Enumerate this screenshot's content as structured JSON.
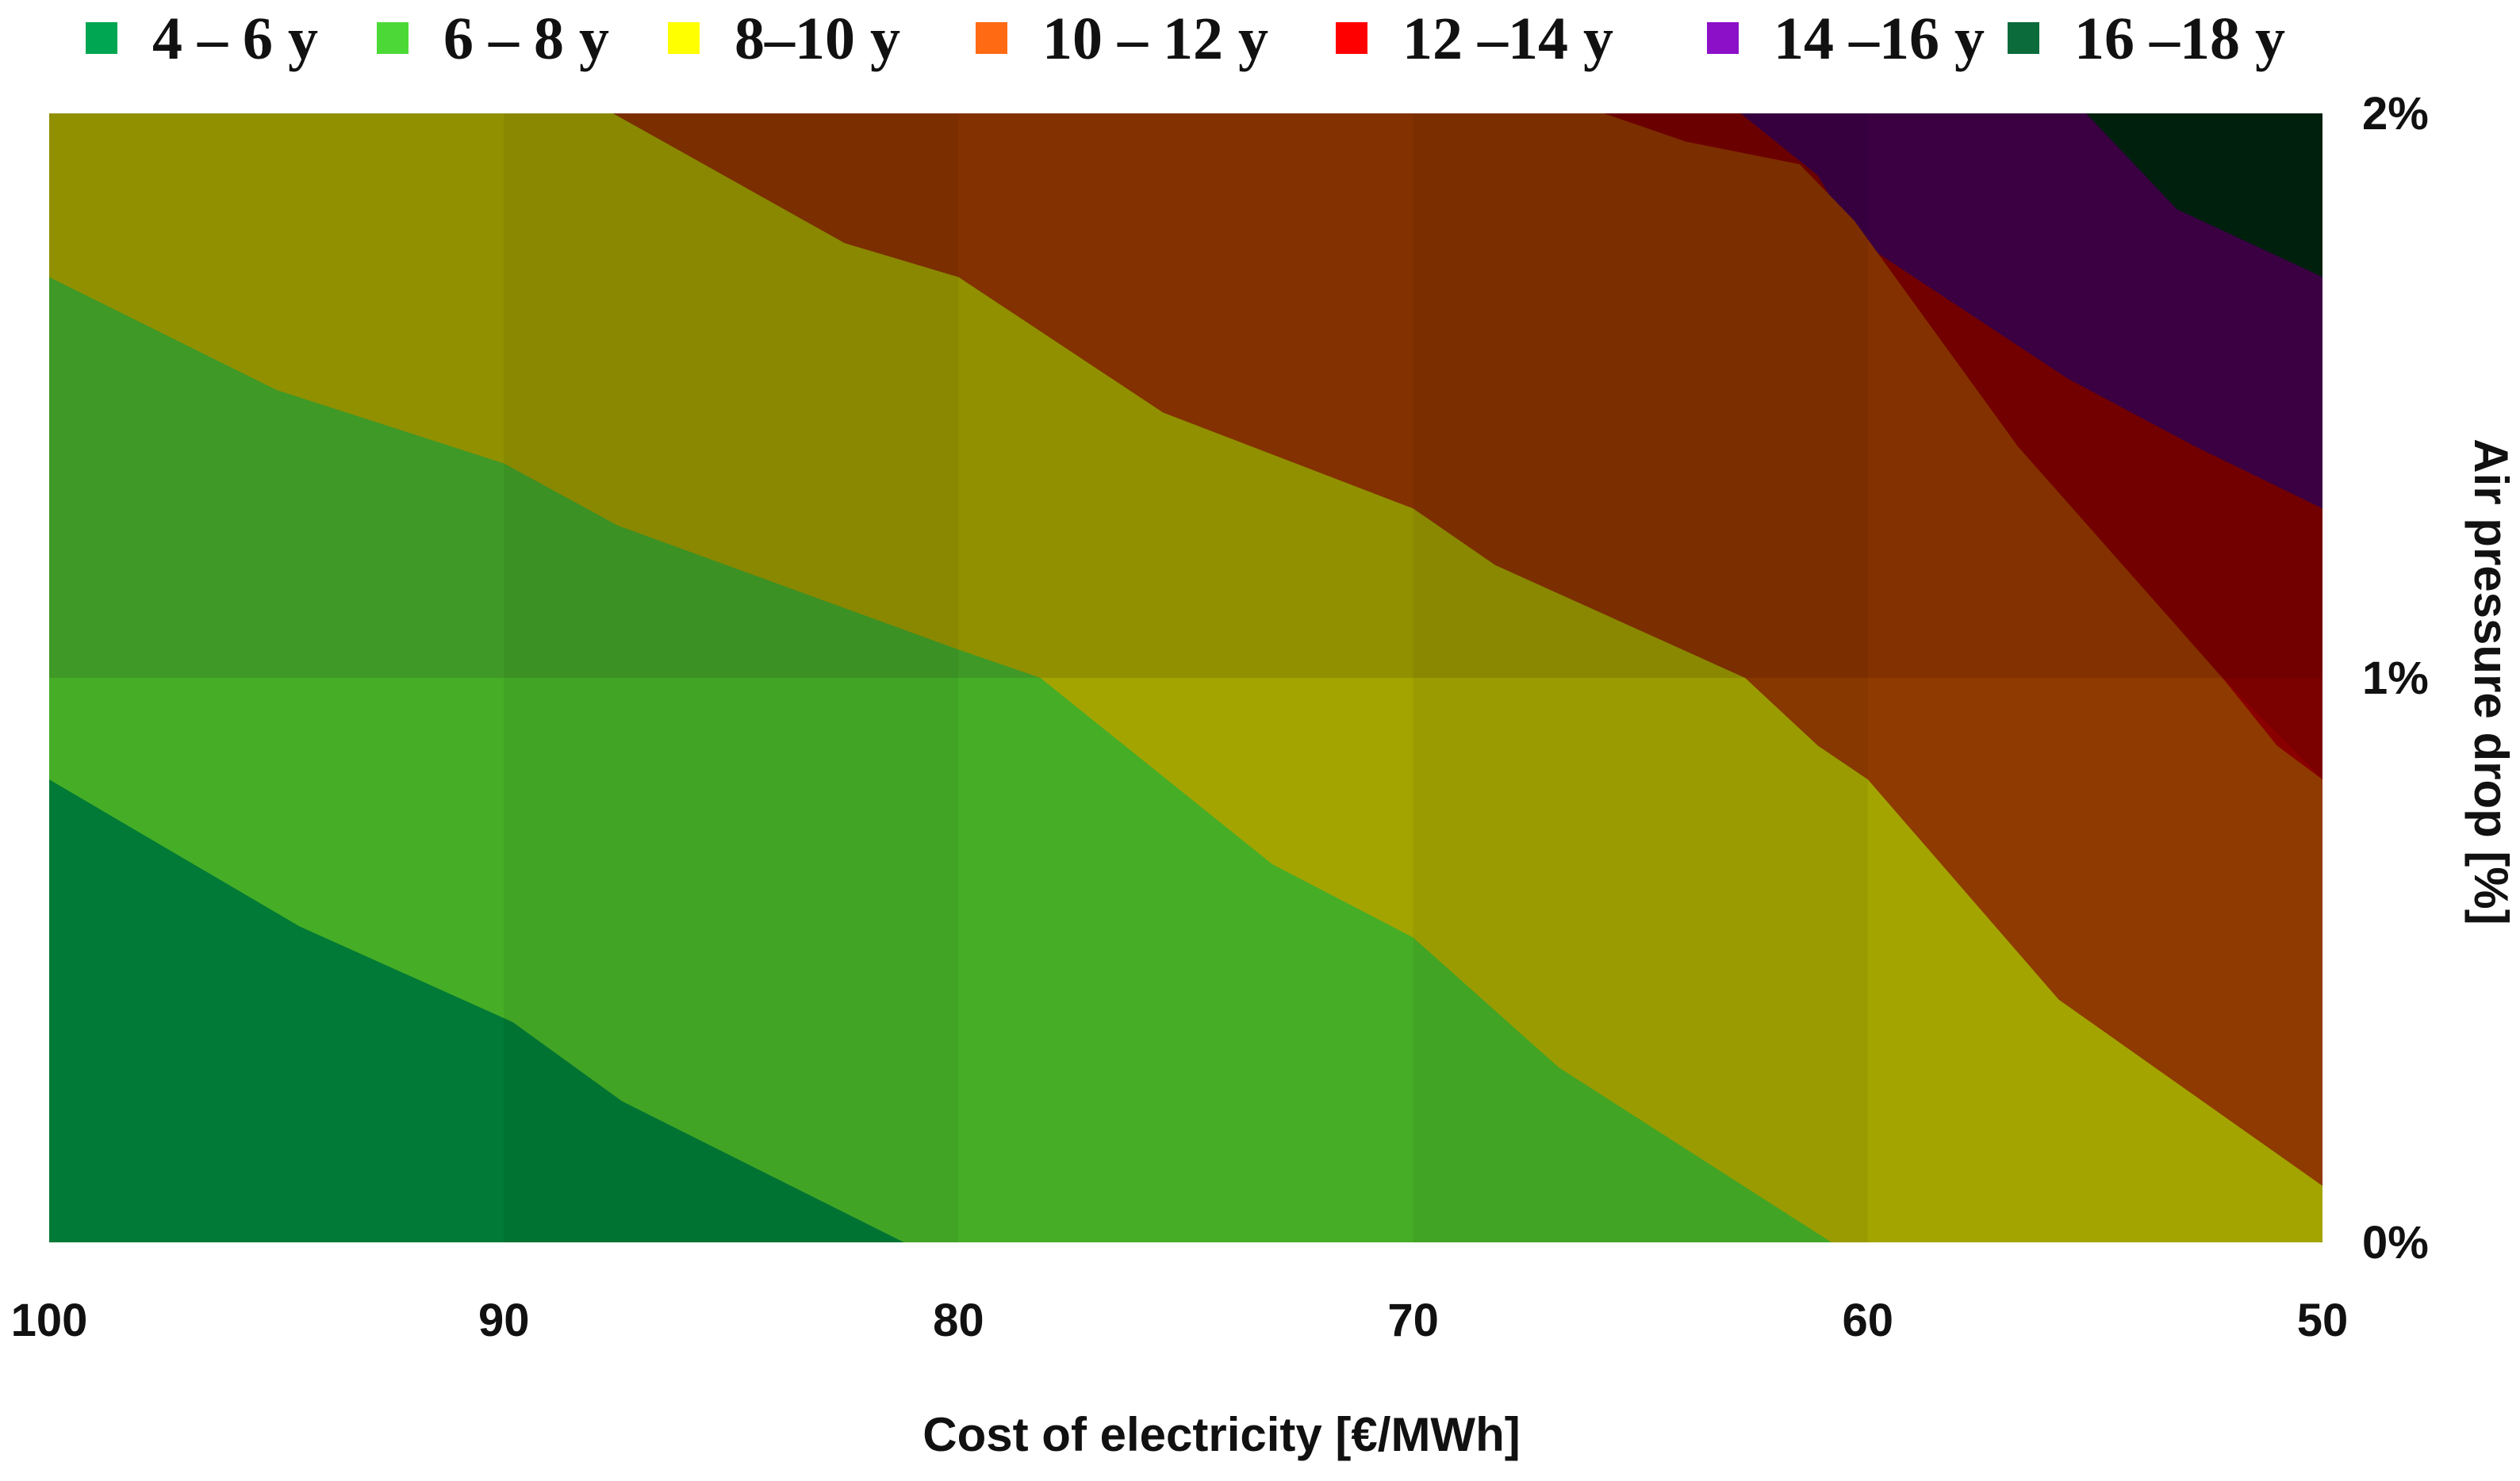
{
  "chart_data": {
    "type": "area",
    "subtype": "stacked-contour",
    "title": "",
    "xlabel": "Cost of electricity [€/MWh]",
    "ylabel": "Air pressure drop [%]",
    "x_reversed": true,
    "xlim": [
      100,
      50
    ],
    "ylim": [
      0,
      2
    ],
    "x_ticks": [
      {
        "value": 100,
        "label": "100"
      },
      {
        "value": 90,
        "label": "90"
      },
      {
        "value": 80,
        "label": "80"
      },
      {
        "value": 70,
        "label": "70"
      },
      {
        "value": 60,
        "label": "60"
      },
      {
        "value": 50,
        "label": "50"
      }
    ],
    "y_ticks": [
      {
        "value": 0,
        "label": "0%"
      },
      {
        "value": 1,
        "label": "1%"
      },
      {
        "value": 2,
        "label": "2%"
      }
    ],
    "y_axis_side": "right",
    "legend_position": "top",
    "legend": [
      {
        "label": "4 – 6 y",
        "color": "#00a651"
      },
      {
        "label": "6 – 8 y",
        "color": "#4cd937"
      },
      {
        "label": "8–10 y",
        "color": "#ffff00"
      },
      {
        "label": "10 – 12 y",
        "color": "#ff6a13"
      },
      {
        "label": "12 –14 y",
        "color": "#ff0000"
      },
      {
        "label": "14 –16 y",
        "color": "#8b10c8"
      },
      {
        "label": "16 –18 y",
        "color": "#0b6b3a"
      }
    ],
    "bands": [
      {
        "name": "payback-4-6",
        "fill_lower": "#007a36",
        "fill_upper": "#007a36",
        "top_boundary": [
          [
            100,
            0.82
          ],
          [
            94.5,
            0.56
          ],
          [
            89.8,
            0.39
          ],
          [
            87.4,
            0.25
          ],
          [
            81.2,
            0.0
          ]
        ]
      },
      {
        "name": "payback-6-8",
        "fill_lower": "#46ad26",
        "fill_upper": "#44a52a",
        "top_boundary": [
          [
            100,
            1.71
          ],
          [
            95,
            1.51
          ],
          [
            90,
            1.38
          ],
          [
            87.5,
            1.27
          ],
          [
            80,
            1.05
          ],
          [
            78.2,
            1.0
          ],
          [
            73.1,
            0.67
          ],
          [
            70,
            0.54
          ],
          [
            66.8,
            0.31
          ],
          [
            60.8,
            0.0
          ]
        ]
      },
      {
        "name": "payback-8-10",
        "fill_lower": "#a3a400",
        "fill_upper": "#9c9b00",
        "top_boundary": [
          [
            100,
            2.0
          ],
          [
            87.6,
            2.0
          ],
          [
            82.5,
            1.77
          ],
          [
            80,
            1.71
          ],
          [
            75.5,
            1.47
          ],
          [
            70,
            1.3
          ],
          [
            68.2,
            1.2
          ],
          [
            62.7,
            1.0
          ],
          [
            61.1,
            0.88
          ],
          [
            60,
            0.82
          ],
          [
            55.8,
            0.43
          ],
          [
            50,
            0.1
          ]
        ]
      },
      {
        "name": "payback-10-12",
        "fill_lower": "#8f3a00",
        "fill_upper": "#8d3500",
        "top_boundary": [
          [
            100,
            2.0
          ],
          [
            65.8,
            2.0
          ],
          [
            64,
            1.95
          ],
          [
            61.5,
            1.91
          ],
          [
            60.3,
            1.81
          ],
          [
            56.7,
            1.41
          ],
          [
            52.2,
            1.0
          ],
          [
            51,
            0.88
          ],
          [
            50,
            0.82
          ]
        ]
      },
      {
        "name": "payback-12-14",
        "fill_lower": "#8a0000",
        "fill_upper": "#7b0000",
        "top_boundary": [
          [
            100,
            2.0
          ],
          [
            65.8,
            2.0
          ],
          [
            64,
            1.95
          ],
          [
            61.5,
            1.91
          ],
          [
            60.3,
            1.81
          ],
          [
            56.7,
            1.41
          ],
          [
            52.2,
            1.0
          ],
          [
            50,
            0.82
          ],
          [
            50,
            1.0
          ]
        ]
      },
      {
        "name": "payback-12-14-upper",
        "fill_lower": "#7b0000",
        "fill_upper": "#7b0000",
        "top_boundary": [
          [
            100,
            2.0
          ],
          [
            62.8,
            2.0
          ],
          [
            61.1,
            1.89
          ],
          [
            60.3,
            1.78
          ],
          [
            55.6,
            1.53
          ],
          [
            52.8,
            1.41
          ],
          [
            50,
            1.3
          ]
        ]
      },
      {
        "name": "payback-14-16",
        "fill_lower": "#3f0048",
        "fill_upper": "#3f0048",
        "top_boundary": [
          [
            100,
            2.0
          ],
          [
            55.2,
            2.0
          ],
          [
            53.2,
            1.83
          ],
          [
            50,
            1.71
          ]
        ]
      },
      {
        "name": "payback-16-18",
        "fill_lower": "#012310",
        "fill_upper": "#012310",
        "top_boundary": [
          [
            100,
            2.0
          ],
          [
            50,
            2.0
          ]
        ]
      }
    ]
  }
}
